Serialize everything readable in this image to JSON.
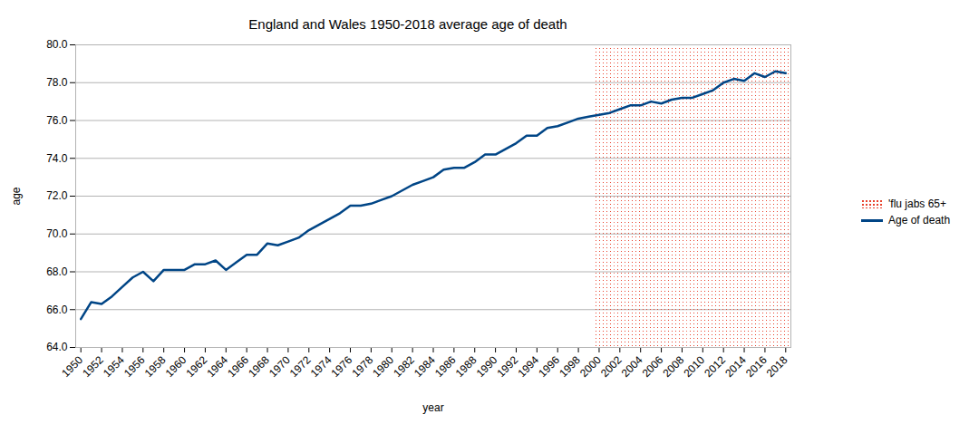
{
  "chart_data": {
    "type": "line",
    "title": "England and Wales 1950-2018 average age of death",
    "x_label": "year",
    "y_label": "age",
    "x": [
      1950,
      1951,
      1952,
      1953,
      1954,
      1955,
      1956,
      1957,
      1958,
      1959,
      1960,
      1961,
      1962,
      1963,
      1964,
      1965,
      1966,
      1967,
      1968,
      1969,
      1970,
      1971,
      1972,
      1973,
      1974,
      1975,
      1976,
      1977,
      1978,
      1979,
      1980,
      1981,
      1982,
      1983,
      1984,
      1985,
      1986,
      1987,
      1988,
      1989,
      1990,
      1991,
      1992,
      1993,
      1994,
      1995,
      1996,
      1997,
      1998,
      1999,
      2000,
      2001,
      2002,
      2003,
      2004,
      2005,
      2006,
      2007,
      2008,
      2009,
      2010,
      2011,
      2012,
      2013,
      2014,
      2015,
      2016,
      2017,
      2018
    ],
    "series": [
      {
        "name": "'flu jabs 65+",
        "type": "bar",
        "color": "#e8412c",
        "values": [
          null,
          null,
          null,
          null,
          null,
          null,
          null,
          null,
          null,
          null,
          null,
          null,
          null,
          null,
          null,
          null,
          null,
          null,
          null,
          null,
          null,
          null,
          null,
          null,
          null,
          null,
          null,
          null,
          null,
          null,
          null,
          null,
          null,
          null,
          null,
          null,
          null,
          null,
          null,
          null,
          null,
          null,
          null,
          null,
          null,
          null,
          null,
          null,
          null,
          null,
          80,
          80,
          80,
          80,
          80,
          80,
          80,
          80,
          80,
          80,
          80,
          80,
          80,
          80,
          80,
          80,
          80,
          80,
          80
        ]
      },
      {
        "name": "Age of death",
        "type": "line",
        "color": "#004586",
        "values": [
          65.5,
          66.4,
          66.3,
          66.7,
          67.2,
          67.7,
          68.0,
          67.5,
          68.1,
          68.1,
          68.1,
          68.4,
          68.4,
          68.6,
          68.1,
          68.5,
          68.9,
          68.9,
          69.5,
          69.4,
          69.6,
          69.8,
          70.2,
          70.5,
          70.8,
          71.1,
          71.5,
          71.5,
          71.6,
          71.8,
          72.0,
          72.3,
          72.6,
          72.8,
          73.0,
          73.4,
          73.5,
          73.5,
          73.8,
          74.2,
          74.2,
          74.5,
          74.8,
          75.2,
          75.2,
          75.6,
          75.7,
          75.9,
          76.1,
          76.2,
          76.3,
          76.4,
          76.6,
          76.8,
          76.8,
          77.0,
          76.9,
          77.1,
          77.2,
          77.2,
          77.4,
          77.6,
          78.0,
          78.2,
          78.1,
          78.5,
          78.3,
          78.6,
          78.5
        ]
      }
    ],
    "xlim": [
      1949.5,
      2018.5
    ],
    "xticks": [
      1950,
      1952,
      1954,
      1956,
      1958,
      1960,
      1962,
      1964,
      1966,
      1968,
      1970,
      1972,
      1974,
      1976,
      1978,
      1980,
      1982,
      1984,
      1986,
      1988,
      1990,
      1992,
      1994,
      1996,
      1998,
      2000,
      2002,
      2004,
      2006,
      2008,
      2010,
      2012,
      2014,
      2016,
      2018
    ],
    "ylim": [
      64,
      80
    ],
    "yticks": [
      {
        "value": 64,
        "label": "64.0"
      },
      {
        "value": 66,
        "label": "66.0"
      },
      {
        "value": 68,
        "label": "68.0"
      },
      {
        "value": 70,
        "label": "70.0"
      },
      {
        "value": 72,
        "label": "72.0"
      },
      {
        "value": 74,
        "label": "74.0"
      },
      {
        "value": 76,
        "label": "76.0"
      },
      {
        "value": 78,
        "label": "78.0"
      },
      {
        "value": 80,
        "label": "80.0"
      }
    ],
    "grid": true,
    "legend": "right"
  }
}
